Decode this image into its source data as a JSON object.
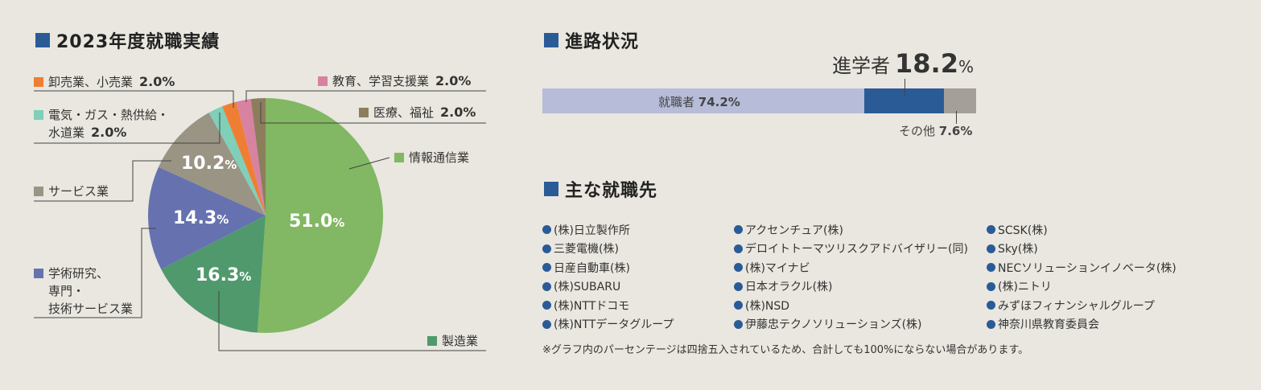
{
  "left": {
    "title": "2023年度就職実績"
  },
  "chart_data": {
    "type": "pie",
    "title": "2023年度就職実績",
    "slices": [
      {
        "name": "情報通信業",
        "value": 51.0,
        "color": "#82b763",
        "inside_label": "51.0",
        "unit": "%"
      },
      {
        "name": "製造業",
        "value": 16.3,
        "color": "#50996c",
        "inside_label": "16.3",
        "unit": "%"
      },
      {
        "name": "学術研究、専門・技術サービス業",
        "lines": [
          "学術研究、",
          "専門・",
          "技術サービス業"
        ],
        "value": 14.3,
        "color": "#6672b0",
        "inside_label": "14.3",
        "unit": "%"
      },
      {
        "name": "サービス業",
        "value": 10.2,
        "color": "#999484",
        "inside_label": "10.2",
        "unit": "%"
      },
      {
        "name": "電気・ガス・熱供給・水道業",
        "lines": [
          "電気・ガス・熱供給・",
          "水道業"
        ],
        "value": 2.0,
        "color": "#7fcfb9",
        "value_label": "2.0%"
      },
      {
        "name": "卸売業、小売業",
        "value": 2.0,
        "color": "#ef7e35",
        "value_label": "2.0%"
      },
      {
        "name": "教育、学習支援業",
        "value": 2.0,
        "color": "#d882a2",
        "value_label": "2.0%"
      },
      {
        "name": "医療、福祉",
        "value": 2.0,
        "color": "#8c7e5d",
        "value_label": "2.0%"
      }
    ]
  },
  "progress": {
    "title": "進路状況",
    "segments": [
      {
        "name": "就職者",
        "value": 74.2,
        "value_label": "74.2%",
        "color": "#b7bcd9"
      },
      {
        "name": "進学者",
        "value": 18.2,
        "value_text": "18.2",
        "unit": "%",
        "color": "#2b5b97"
      },
      {
        "name": "その他",
        "value": 7.6,
        "value_label": "7.6%",
        "color": "#a49f98"
      }
    ]
  },
  "employers": {
    "title": "主な就職先",
    "columns": [
      [
        "(株)日立製作所",
        "三菱電機(株)",
        "日産自動車(株)",
        "(株)SUBARU",
        "(株)NTTドコモ",
        "(株)NTTデータグループ"
      ],
      [
        "アクセンチュア(株)",
        "デロイトトーマツリスクアドバイザリー(同)",
        "(株)マイナビ",
        "日本オラクル(株)",
        "(株)NSD",
        "伊藤忠テクノソリューションズ(株)"
      ],
      [
        "SCSK(株)",
        "Sky(株)",
        "NECソリューションイノベータ(株)",
        "(株)ニトリ",
        "みずほフィナンシャルグループ",
        "神奈川県教育委員会"
      ]
    ]
  },
  "note": "※グラフ内のパーセンテージは四捨五入されているため、合計しても100%にならない場合があります。"
}
